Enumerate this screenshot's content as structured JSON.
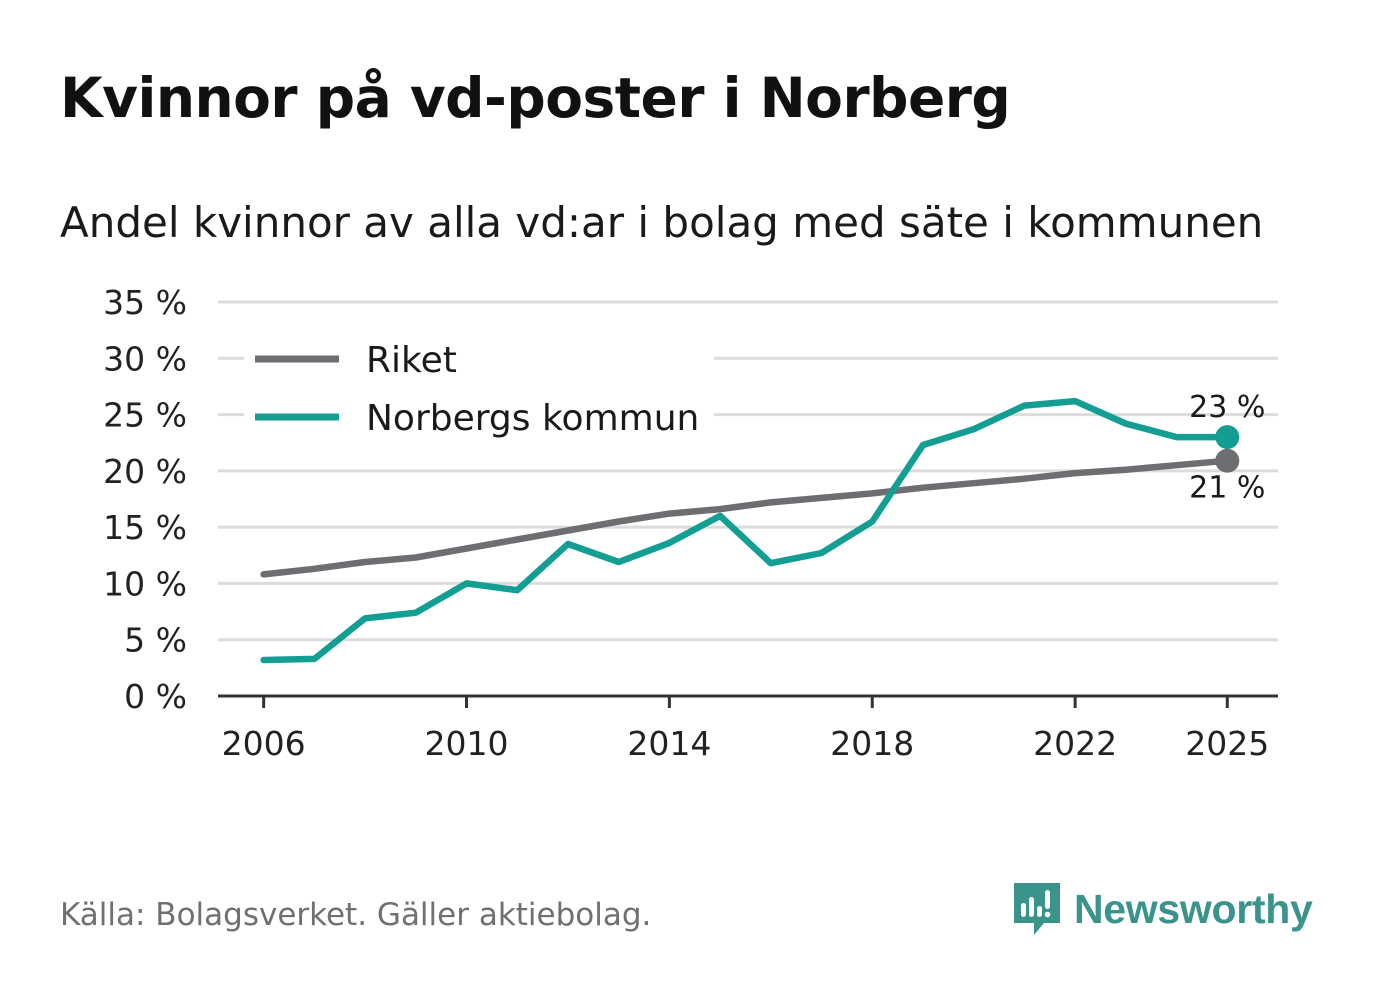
{
  "title": "Kvinnor på vd-poster i Norberg",
  "subtitle": "Andel kvinnor av alla vd:ar i bolag med säte i kommunen",
  "source": "Källa: Bolagsverket. Gäller aktiebolag.",
  "brand": {
    "name": "Newsworthy",
    "icon": "newsworthy-logo-icon",
    "color": "#3a948c"
  },
  "chart_data": {
    "type": "line",
    "title": "Kvinnor på vd-poster i Norberg",
    "xlabel": "",
    "ylabel": "",
    "ylim": [
      0,
      35
    ],
    "xlim": [
      2005.1,
      2026
    ],
    "yticks": [
      0,
      5,
      10,
      15,
      20,
      25,
      30,
      35
    ],
    "ytick_labels": [
      "0 %",
      "5 %",
      "10 %",
      "15 %",
      "20 %",
      "25 %",
      "30 %",
      "35 %"
    ],
    "xticks": [
      2006,
      2010,
      2014,
      2018,
      2022,
      2025
    ],
    "xtick_labels": [
      "2006",
      "2010",
      "2014",
      "2018",
      "2022",
      "2025"
    ],
    "grid": true,
    "legend_position": "top-left",
    "x": [
      2006,
      2007,
      2008,
      2009,
      2010,
      2011,
      2012,
      2013,
      2014,
      2015,
      2016,
      2017,
      2018,
      2019,
      2020,
      2021,
      2022,
      2023,
      2024,
      2025
    ],
    "series": [
      {
        "name": "Riket",
        "color": "#6e6d72",
        "values": [
          10.8,
          11.3,
          11.9,
          12.3,
          13.1,
          13.9,
          14.7,
          15.5,
          16.2,
          16.6,
          17.2,
          17.6,
          18.0,
          18.5,
          18.9,
          19.3,
          19.8,
          20.1,
          20.5,
          20.9
        ],
        "end_label": "21 %"
      },
      {
        "name": "Norbergs kommun",
        "color": "#139e94",
        "values": [
          3.2,
          3.3,
          6.9,
          7.4,
          10.0,
          9.4,
          13.5,
          11.9,
          13.6,
          16.0,
          11.8,
          12.7,
          15.5,
          22.3,
          23.7,
          25.8,
          26.2,
          24.2,
          23.0,
          23.0
        ],
        "end_label": "23 %"
      }
    ]
  }
}
